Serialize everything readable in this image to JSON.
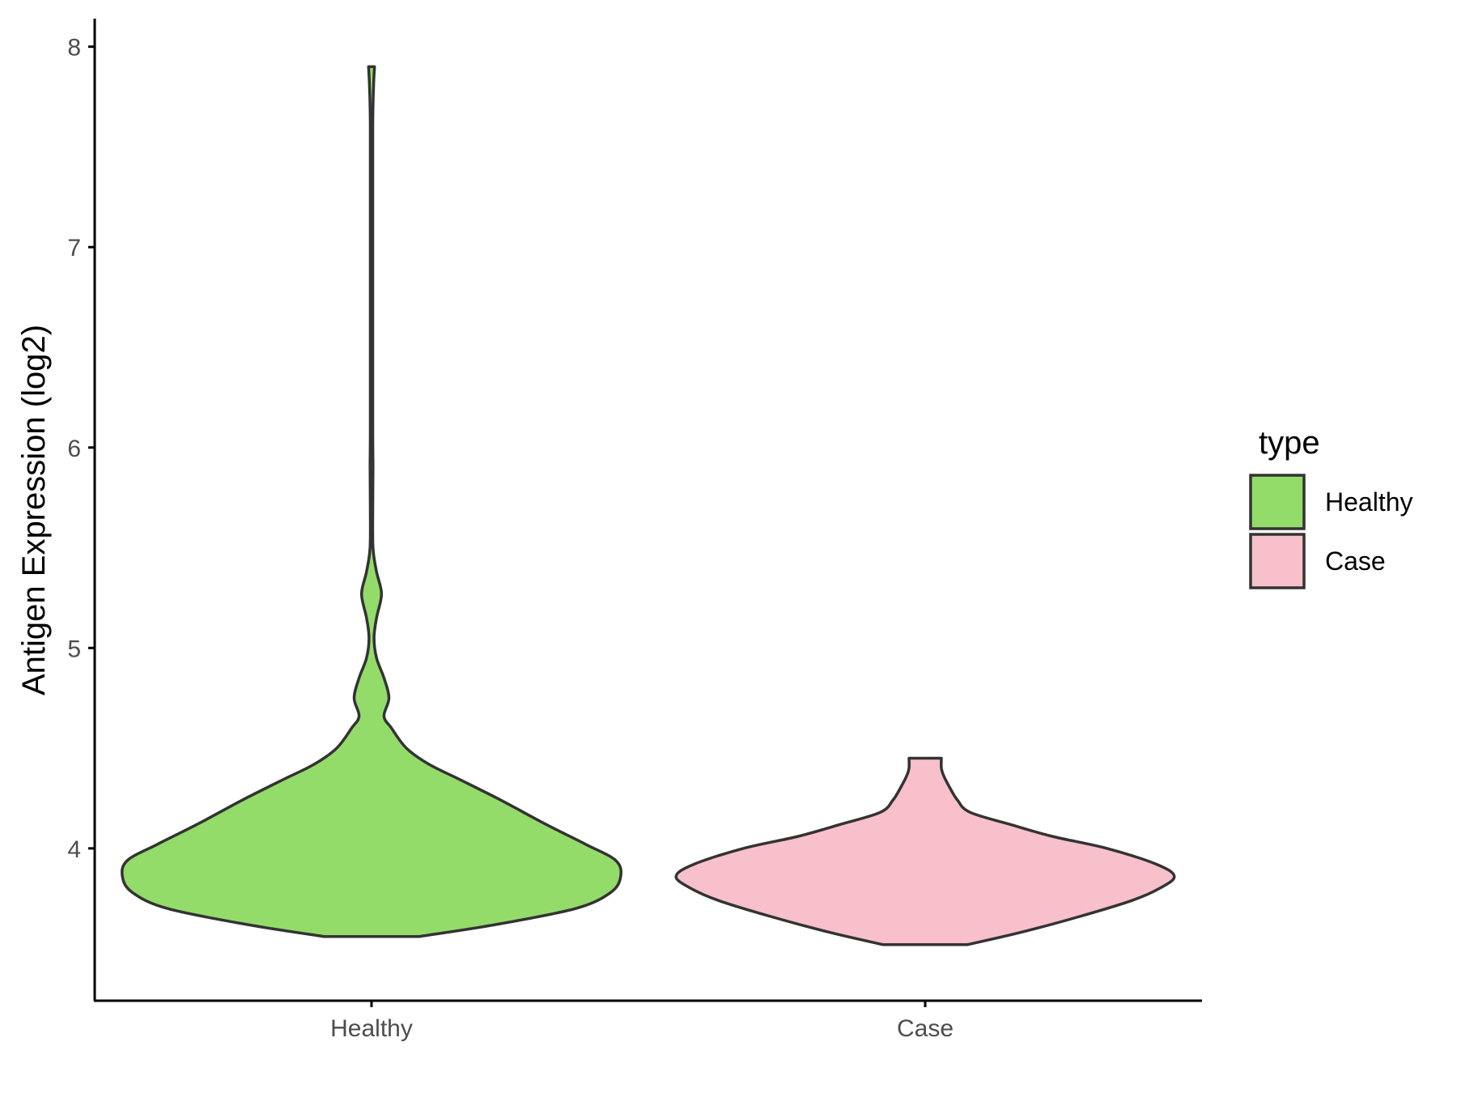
{
  "chart_data": {
    "type": "violin",
    "title": "",
    "xlabel": "",
    "ylabel": "Antigen Expression (log2)",
    "ylim": [
      3.24,
      8.14
    ],
    "yticks": [
      4,
      5,
      6,
      7,
      8
    ],
    "categories": [
      "Healthy",
      "Case"
    ],
    "legend": {
      "title": "type",
      "placement": "right",
      "entries": [
        {
          "label": "Healthy",
          "color": "#93dc6a"
        },
        {
          "label": "Case",
          "color": "#f8c0cb"
        }
      ]
    },
    "series": [
      {
        "category": "Healthy",
        "color": "#93dc6a",
        "min": 3.56,
        "max": 7.9,
        "density_profile": [
          [
            3.56,
            0.19
          ],
          [
            3.62,
            0.5
          ],
          [
            3.7,
            0.82
          ],
          [
            3.78,
            0.96
          ],
          [
            3.86,
            1.0
          ],
          [
            3.94,
            0.98
          ],
          [
            4.02,
            0.86
          ],
          [
            4.12,
            0.7
          ],
          [
            4.24,
            0.52
          ],
          [
            4.34,
            0.36
          ],
          [
            4.42,
            0.23
          ],
          [
            4.5,
            0.14
          ],
          [
            4.6,
            0.08
          ],
          [
            4.66,
            0.05
          ],
          [
            4.75,
            0.07
          ],
          [
            4.85,
            0.05
          ],
          [
            4.95,
            0.02
          ],
          [
            5.05,
            0.01
          ],
          [
            5.15,
            0.02
          ],
          [
            5.27,
            0.04
          ],
          [
            5.38,
            0.02
          ],
          [
            5.5,
            0.006
          ],
          [
            5.7,
            0.005
          ],
          [
            5.9,
            0.006
          ],
          [
            6.1,
            0.005
          ],
          [
            7.0,
            0.005
          ],
          [
            7.6,
            0.005
          ],
          [
            7.8,
            0.008
          ],
          [
            7.9,
            0.012
          ]
        ]
      },
      {
        "category": "Case",
        "color": "#f8c0cb",
        "min": 3.52,
        "max": 4.45,
        "density_profile": [
          [
            3.52,
            0.17
          ],
          [
            3.58,
            0.38
          ],
          [
            3.66,
            0.62
          ],
          [
            3.74,
            0.83
          ],
          [
            3.8,
            0.94
          ],
          [
            3.86,
            1.0
          ],
          [
            3.92,
            0.93
          ],
          [
            4.0,
            0.73
          ],
          [
            4.06,
            0.51
          ],
          [
            4.12,
            0.34
          ],
          [
            4.18,
            0.18
          ],
          [
            4.24,
            0.13
          ],
          [
            4.3,
            0.1
          ],
          [
            4.36,
            0.075
          ],
          [
            4.4,
            0.065
          ],
          [
            4.45,
            0.065
          ]
        ]
      }
    ],
    "grid": false
  }
}
